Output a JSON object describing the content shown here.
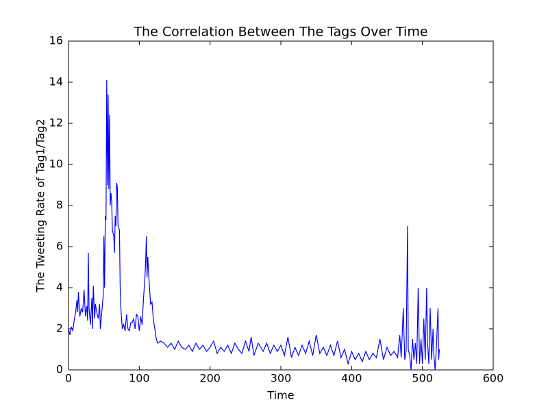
{
  "chart_data": {
    "type": "line",
    "title": "The Correlation Between The Tags Over Time",
    "xlabel": "Time",
    "ylabel": "The Tweeting Rate of Tag1/Tag2",
    "xlim": [
      0,
      600
    ],
    "ylim": [
      0,
      16
    ],
    "xticks": [
      0,
      100,
      200,
      300,
      400,
      500,
      600
    ],
    "yticks": [
      0,
      2,
      4,
      6,
      8,
      10,
      12,
      14,
      16
    ],
    "x": [
      0,
      2,
      4,
      6,
      8,
      10,
      12,
      13,
      14,
      16,
      18,
      20,
      22,
      24,
      26,
      27,
      28,
      29,
      31,
      33,
      34,
      35,
      37,
      38,
      40,
      42,
      44,
      45,
      47,
      49,
      50,
      51,
      52,
      53,
      54,
      55,
      56,
      57,
      58,
      59,
      60,
      61,
      62,
      64,
      65,
      66,
      67,
      68,
      69,
      70,
      72,
      73,
      74,
      76,
      78,
      80,
      82,
      84,
      86,
      88,
      90,
      92,
      94,
      96,
      98,
      100,
      102,
      104,
      106,
      108,
      109,
      110,
      111,
      112,
      114,
      116,
      118,
      120,
      122,
      124,
      126,
      130,
      135,
      140,
      145,
      150,
      155,
      160,
      165,
      170,
      175,
      180,
      185,
      190,
      195,
      200,
      205,
      210,
      215,
      220,
      225,
      230,
      235,
      240,
      245,
      250,
      255,
      258,
      262,
      268,
      275,
      280,
      285,
      290,
      295,
      300,
      305,
      310,
      315,
      320,
      325,
      330,
      335,
      340,
      345,
      350,
      355,
      360,
      365,
      370,
      375,
      380,
      385,
      390,
      395,
      400,
      405,
      410,
      415,
      420,
      425,
      430,
      435,
      440,
      445,
      450,
      455,
      460,
      465,
      468,
      470,
      473,
      475,
      477,
      479,
      480,
      482,
      484,
      486,
      488,
      490,
      492,
      494,
      496,
      498,
      500,
      502,
      504,
      506,
      507,
      509,
      511,
      513,
      515,
      516,
      518,
      520,
      522,
      523,
      524
    ],
    "series": [
      {
        "color": "#0000ff",
        "values": [
          2.0,
          1.7,
          2.1,
          1.9,
          2.4,
          2.8,
          3.4,
          2.8,
          3.8,
          2.6,
          3.0,
          2.8,
          3.9,
          2.6,
          3.1,
          2.4,
          5.7,
          3.0,
          2.2,
          3.5,
          2.0,
          4.1,
          2.5,
          3.2,
          2.8,
          2.5,
          3.2,
          2.0,
          2.8,
          3.6,
          6.5,
          4.0,
          7.5,
          7.3,
          14.1,
          9.0,
          13.4,
          8.8,
          12.4,
          8.0,
          8.6,
          8.2,
          6.8,
          6.5,
          5.7,
          7.5,
          7.0,
          9.1,
          8.9,
          7.0,
          6.8,
          4.0,
          3.0,
          2.0,
          2.2,
          1.9,
          2.7,
          2.0,
          1.9,
          2.3,
          2.3,
          2.5,
          2.0,
          2.7,
          2.6,
          1.9,
          2.6,
          2.2,
          3.5,
          4.5,
          5.3,
          6.5,
          4.5,
          5.5,
          4.2,
          3.2,
          3.3,
          2.4,
          2.0,
          1.5,
          1.3,
          1.4,
          1.3,
          1.1,
          1.3,
          1.0,
          1.4,
          1.1,
          1.0,
          1.2,
          0.9,
          1.3,
          1.0,
          1.2,
          0.9,
          1.1,
          1.4,
          0.8,
          1.1,
          0.9,
          1.2,
          0.8,
          1.3,
          1.0,
          0.8,
          1.4,
          0.9,
          1.6,
          0.7,
          1.3,
          0.9,
          1.3,
          0.8,
          1.2,
          0.9,
          1.2,
          0.7,
          1.6,
          0.6,
          1.1,
          0.7,
          1.2,
          0.8,
          1.4,
          0.7,
          1.7,
          0.8,
          1.1,
          0.7,
          1.2,
          0.7,
          1.4,
          0.6,
          1.0,
          0.3,
          0.9,
          0.5,
          0.8,
          0.4,
          0.9,
          0.5,
          0.8,
          0.6,
          1.5,
          0.5,
          1.1,
          0.7,
          0.9,
          0.6,
          1.7,
          0.6,
          3.0,
          0.5,
          0.9,
          7.0,
          1.0,
          0.7,
          0.0,
          1.5,
          0.5,
          1.3,
          0.3,
          4.0,
          0.3,
          1.5,
          0.3,
          2.5,
          0.5,
          4.0,
          1.5,
          0.3,
          3.0,
          0.5,
          2.0,
          0.8,
          0.0,
          1.3,
          3.0,
          0.5,
          1.0
        ]
      }
    ]
  }
}
